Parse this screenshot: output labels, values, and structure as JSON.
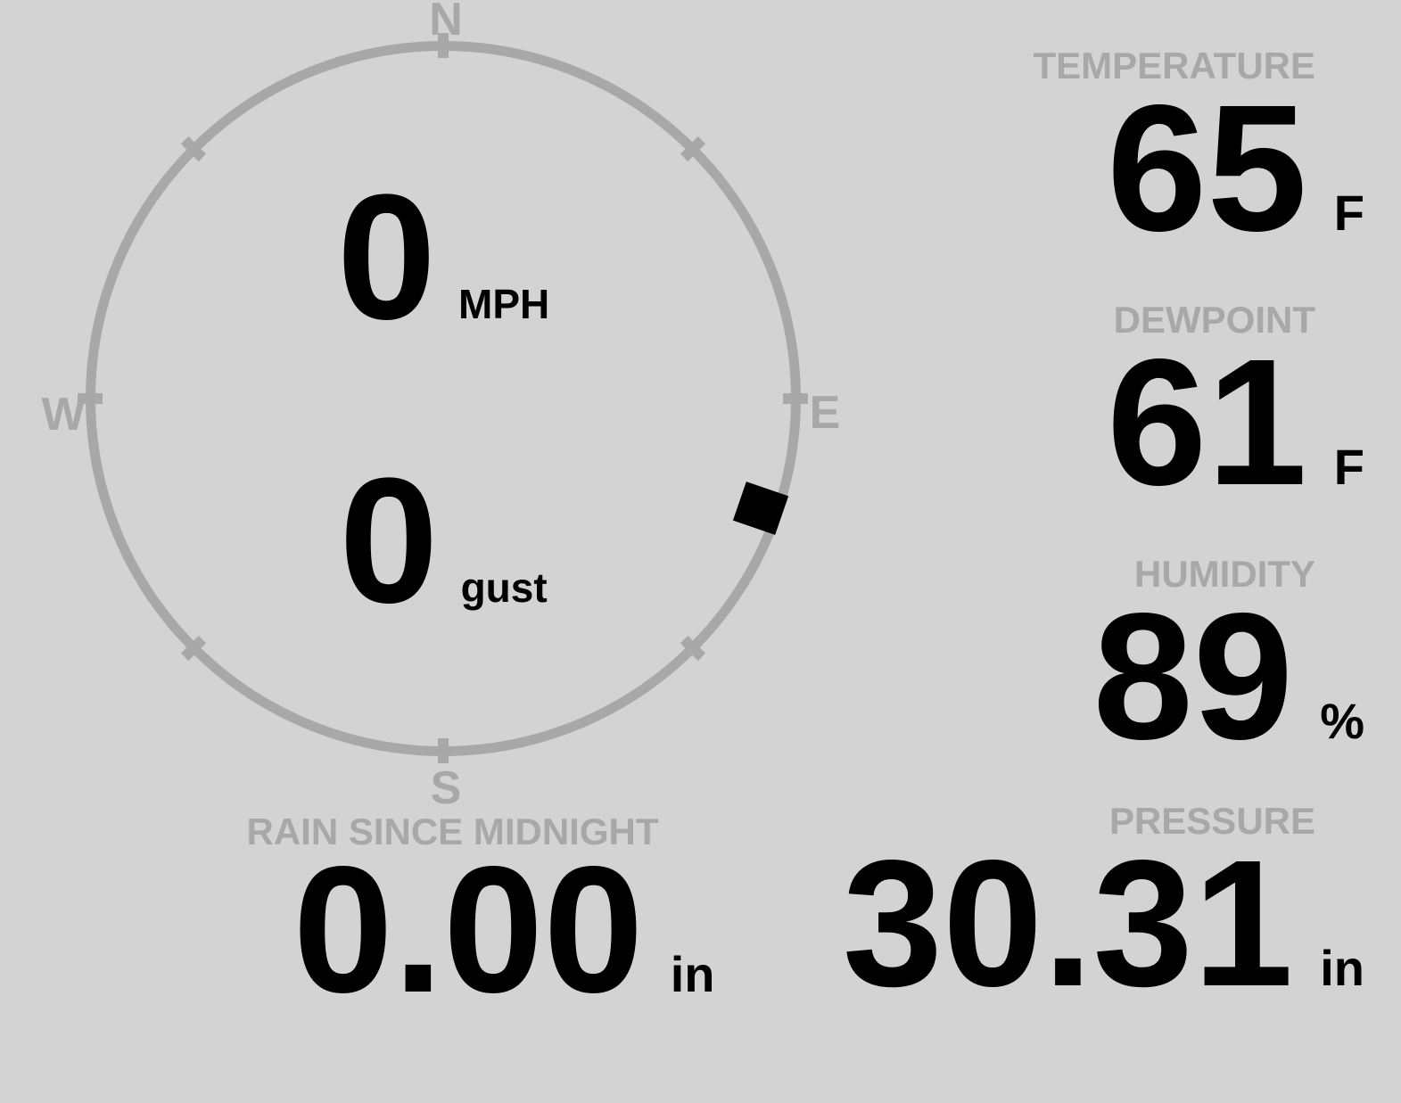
{
  "colors": {
    "background": "#d3d3d3",
    "muted_gray": "#a8a8a8",
    "text": "#000000"
  },
  "compass": {
    "directions": {
      "north": "N",
      "east": "E",
      "south": "S",
      "west": "W"
    },
    "speed": {
      "value": "0",
      "unit": "MPH"
    },
    "gust": {
      "value": "0",
      "unit": "gust"
    },
    "wind_direction_deg": 109
  },
  "metrics": {
    "temperature": {
      "label": "TEMPERATURE",
      "value": "65",
      "unit": "F"
    },
    "dewpoint": {
      "label": "DEWPOINT",
      "value": "61",
      "unit": "F"
    },
    "humidity": {
      "label": "HUMIDITY",
      "value": "89",
      "unit": "%"
    },
    "rain": {
      "label": "RAIN SINCE MIDNIGHT",
      "value": "0.00",
      "unit": "in"
    },
    "pressure": {
      "label": "PRESSURE",
      "value": "30.31",
      "unit": "in"
    }
  }
}
